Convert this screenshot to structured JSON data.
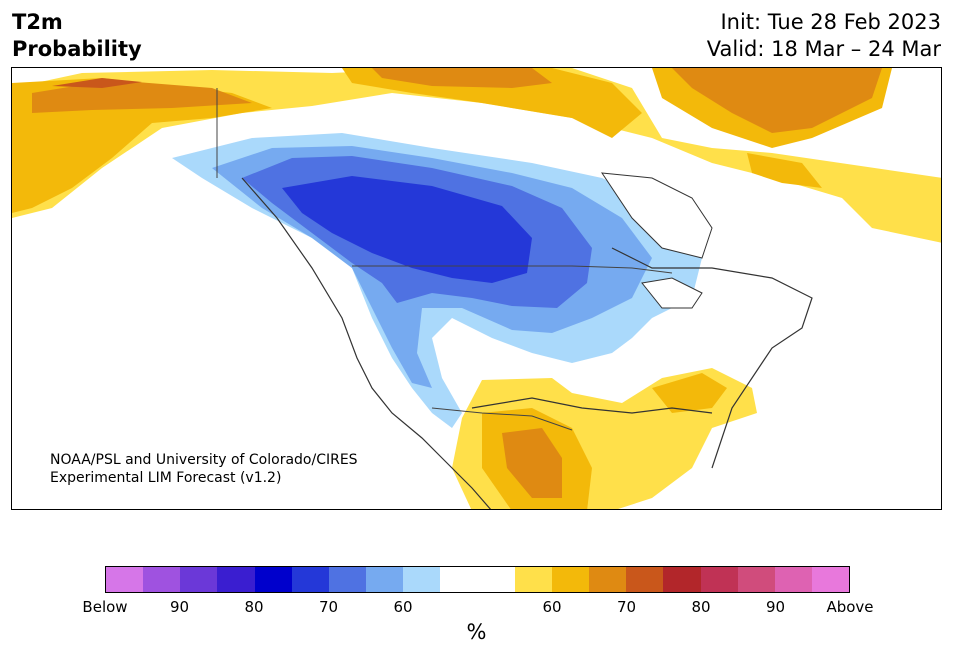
{
  "header": {
    "title_line1": "T2m",
    "title_line2": "Probability",
    "init": "Init: Tue 28 Feb 2023",
    "valid": "Valid: 18 Mar – 24 Mar"
  },
  "credit": {
    "line1": "NOAA/PSL and University of Colorado/CIRES",
    "line2": "Experimental LIM Forecast (v1.2)"
  },
  "colorbar": {
    "colors": [
      "#d676e8",
      "#9f52e0",
      "#6b38d8",
      "#3a1ed0",
      "#0000cc",
      "#2438d8",
      "#4f72e2",
      "#76aaf0",
      "#aad9fb",
      "#ffffff",
      "#ffffff",
      "#ffe04a",
      "#f3b90a",
      "#df8a12",
      "#c9571b",
      "#b2262a",
      "#c03255",
      "#d04c7c",
      "#de62b2",
      "#e878dc"
    ],
    "ticks": [
      "Below",
      "90",
      "80",
      "70",
      "60",
      "60",
      "70",
      "80",
      "90",
      "Above"
    ],
    "unit": "%"
  },
  "map": {
    "colors": {
      "cold_60": "#aad9fb",
      "cold_70": "#76aaf0",
      "cold_80": "#4f72e2",
      "cold_90": "#2438d8",
      "warm_60": "#ffe04a",
      "warm_70": "#f3b90a",
      "warm_80": "#df8a12",
      "warm_90": "#c9571b"
    }
  }
}
